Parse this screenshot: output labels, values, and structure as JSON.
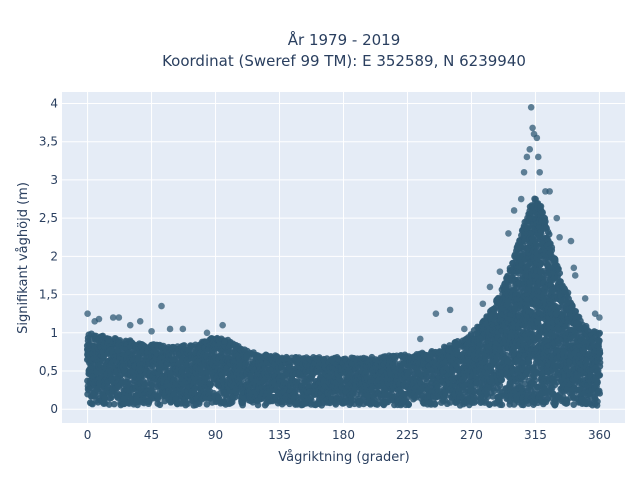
{
  "chart_data": {
    "type": "scatter",
    "title_lines": [
      "År 1979 - 2019",
      "Koordinat (Sweref 99 TM): E 352589, N 6239940"
    ],
    "xlabel": "Vågriktning (grader)",
    "ylabel": "Signifikant våghöjd (m)",
    "xlim": [
      -18,
      378
    ],
    "ylim": [
      -0.18,
      4.15
    ],
    "x_ticks": [
      0,
      45,
      90,
      135,
      180,
      225,
      270,
      315,
      360
    ],
    "x_tick_labels": [
      "0",
      "45",
      "90",
      "135",
      "180",
      "225",
      "270",
      "315",
      "360"
    ],
    "y_ticks": [
      0,
      0.5,
      1,
      1.5,
      2,
      2.5,
      3,
      3.5,
      4
    ],
    "y_tick_labels": [
      "0",
      "0,5",
      "1",
      "1,5",
      "2",
      "2,5",
      "3",
      "3,5",
      "4"
    ],
    "grid": true,
    "colors": {
      "marker": "#2f5a74",
      "plot_bg": "#e5ecf6",
      "grid": "#ffffff",
      "text": "#2a3f5f"
    },
    "density_envelope": {
      "x": [
        0,
        15,
        30,
        45,
        60,
        75,
        90,
        100,
        110,
        120,
        135,
        150,
        165,
        180,
        195,
        210,
        225,
        240,
        255,
        270,
        280,
        290,
        300,
        305,
        310,
        315,
        320,
        325,
        330,
        340,
        350,
        360
      ],
      "y_max": [
        1.0,
        0.95,
        0.9,
        0.85,
        0.83,
        0.85,
        0.95,
        0.9,
        0.8,
        0.72,
        0.7,
        0.68,
        0.68,
        0.68,
        0.68,
        0.7,
        0.72,
        0.75,
        0.85,
        1.0,
        1.2,
        1.5,
        2.0,
        2.3,
        2.6,
        2.8,
        2.6,
        2.3,
        1.9,
        1.4,
        1.1,
        1.0
      ]
    },
    "outliers": [
      {
        "x": 0,
        "y": 1.25
      },
      {
        "x": 5,
        "y": 1.15
      },
      {
        "x": 8,
        "y": 1.18
      },
      {
        "x": 18,
        "y": 1.2
      },
      {
        "x": 22,
        "y": 1.2
      },
      {
        "x": 30,
        "y": 1.1
      },
      {
        "x": 37,
        "y": 1.15
      },
      {
        "x": 45,
        "y": 1.02
      },
      {
        "x": 52,
        "y": 1.35
      },
      {
        "x": 58,
        "y": 1.05
      },
      {
        "x": 67,
        "y": 1.05
      },
      {
        "x": 84,
        "y": 1.0
      },
      {
        "x": 95,
        "y": 1.1
      },
      {
        "x": 234,
        "y": 0.92
      },
      {
        "x": 245,
        "y": 1.25
      },
      {
        "x": 255,
        "y": 1.3
      },
      {
        "x": 265,
        "y": 1.05
      },
      {
        "x": 278,
        "y": 1.38
      },
      {
        "x": 283,
        "y": 1.6
      },
      {
        "x": 290,
        "y": 1.8
      },
      {
        "x": 296,
        "y": 2.3
      },
      {
        "x": 300,
        "y": 2.6
      },
      {
        "x": 305,
        "y": 2.75
      },
      {
        "x": 307,
        "y": 3.1
      },
      {
        "x": 309,
        "y": 3.3
      },
      {
        "x": 311,
        "y": 3.4
      },
      {
        "x": 312,
        "y": 3.95
      },
      {
        "x": 313,
        "y": 3.68
      },
      {
        "x": 314,
        "y": 3.6
      },
      {
        "x": 316,
        "y": 3.55
      },
      {
        "x": 317,
        "y": 3.3
      },
      {
        "x": 318,
        "y": 3.1
      },
      {
        "x": 322,
        "y": 2.85
      },
      {
        "x": 325,
        "y": 2.85
      },
      {
        "x": 330,
        "y": 2.5
      },
      {
        "x": 332,
        "y": 2.25
      },
      {
        "x": 340,
        "y": 2.2
      },
      {
        "x": 342,
        "y": 1.85
      },
      {
        "x": 343,
        "y": 1.75
      },
      {
        "x": 350,
        "y": 1.45
      },
      {
        "x": 357,
        "y": 1.25
      },
      {
        "x": 360,
        "y": 1.2
      }
    ]
  }
}
